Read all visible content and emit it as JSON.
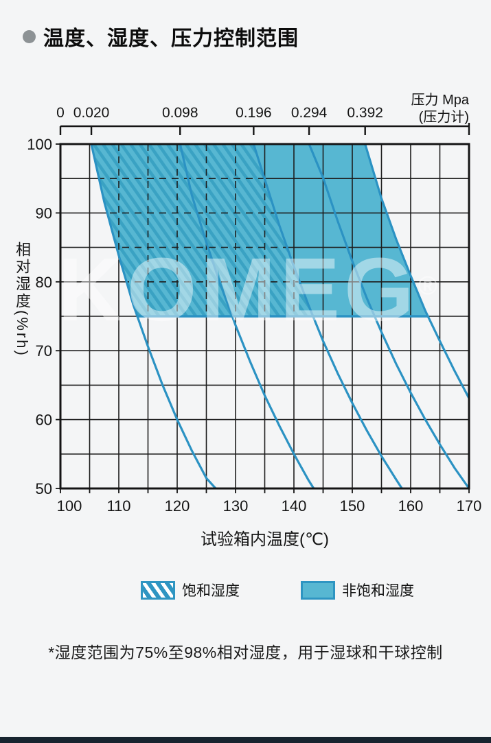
{
  "header": {
    "title": "温度、湿度、压力控制范围",
    "bullet_color": "#8d9295"
  },
  "watermark": {
    "text": "KOMEG",
    "mark": "®"
  },
  "legend": {
    "items": [
      {
        "label": "饱和湿度",
        "style": "hatched"
      },
      {
        "label": "非饱和湿度",
        "style": "solid"
      }
    ]
  },
  "footnote": "*湿度范围为75%至98%相对湿度，用于湿球和干球控制",
  "colors": {
    "background": "#f4f5f6",
    "ink": "#141414",
    "grid": "#1d1d1d",
    "fill_teal": "#57b7d2",
    "hatch_stripe": "#3aa2c3",
    "curve_blue": "#2b92c3",
    "watermark_white": "rgba(255,255,255,0.45)",
    "bottom_bar": "#17242f"
  },
  "chart_data": {
    "type": "area",
    "xlabel": "试验箱内温度(℃)",
    "ylabel": "相对湿度(%rh)",
    "xlim": [
      100,
      170
    ],
    "ylim": [
      50,
      100
    ],
    "x_ticks": [
      100,
      110,
      120,
      130,
      140,
      150,
      160,
      170
    ],
    "y_ticks": [
      100,
      90,
      80,
      70,
      60,
      50
    ],
    "grid_step": 5,
    "grid": "on",
    "top_axis": {
      "label_line1": "压力 Mpa",
      "label_line2": "(压力计)",
      "ticks": [
        {
          "label": "0",
          "temp": 100
        },
        {
          "label": "0.020",
          "temp": 105.3
        },
        {
          "label": "0.098",
          "temp": 120.5
        },
        {
          "label": "0.196",
          "temp": 133.1
        },
        {
          "label": "0.294",
          "temp": 142.6
        },
        {
          "label": "0.392",
          "temp": 152.2
        },
        {
          "label": "",
          "temp": 170
        }
      ]
    },
    "curves": [
      {
        "pressure_mpa": 0.02,
        "points": [
          [
            105.3,
            100
          ],
          [
            107.5,
            91.6
          ],
          [
            110,
            83.8
          ],
          [
            112.5,
            76.6
          ],
          [
            115,
            70.6
          ],
          [
            117.5,
            65.0
          ],
          [
            120,
            60.0
          ],
          [
            122.5,
            55.5
          ],
          [
            125,
            51.5
          ],
          [
            126.6,
            50
          ]
        ]
      },
      {
        "pressure_mpa": 0.098,
        "points": [
          [
            120.5,
            100
          ],
          [
            122.5,
            92.6
          ],
          [
            125,
            85.7
          ],
          [
            127.5,
            79.4
          ],
          [
            130,
            73.7
          ],
          [
            132.5,
            68.4
          ],
          [
            135,
            63.5
          ],
          [
            137.5,
            59.1
          ],
          [
            140,
            55.0
          ],
          [
            142.5,
            51.2
          ],
          [
            143.4,
            50
          ]
        ]
      },
      {
        "pressure_mpa": 0.196,
        "points": [
          [
            133.1,
            100
          ],
          [
            135,
            94.9
          ],
          [
            137.5,
            88.2
          ],
          [
            140,
            82.2
          ],
          [
            142.5,
            76.6
          ],
          [
            145,
            71.4
          ],
          [
            147.5,
            66.7
          ],
          [
            150,
            62.4
          ],
          [
            152.5,
            58.4
          ],
          [
            155,
            54.7
          ],
          [
            157.5,
            51.3
          ],
          [
            158.5,
            50
          ]
        ]
      },
      {
        "pressure_mpa": 0.294,
        "points": [
          [
            142.6,
            100
          ],
          [
            145,
            95.1
          ],
          [
            147.5,
            88.8
          ],
          [
            150,
            83.0
          ],
          [
            152.5,
            77.6
          ],
          [
            155,
            72.7
          ],
          [
            157.5,
            68.1
          ],
          [
            160,
            63.9
          ],
          [
            162.5,
            60.0
          ],
          [
            165,
            56.4
          ],
          [
            167.5,
            53.0
          ],
          [
            170,
            50
          ]
        ]
      },
      {
        "pressure_mpa": 0.392,
        "points": [
          [
            152.2,
            100
          ],
          [
            155,
            92.1
          ],
          [
            157.5,
            86.2
          ],
          [
            160,
            80.9
          ],
          [
            162.5,
            75.8
          ],
          [
            165,
            71.4
          ],
          [
            167.5,
            67.1
          ],
          [
            170,
            63.1
          ]
        ]
      }
    ],
    "regions": [
      {
        "name": "saturated",
        "label": "饱和湿度",
        "style": "hatched",
        "left_curve": 0,
        "right_curve": 2,
        "top_rh": 100,
        "bottom_rh": 75
      },
      {
        "name": "unsaturated",
        "label": "非饱和湿度",
        "style": "solid",
        "left_curve": 2,
        "right_curve": 4,
        "top_rh": 100,
        "bottom_rh": 75
      }
    ]
  }
}
